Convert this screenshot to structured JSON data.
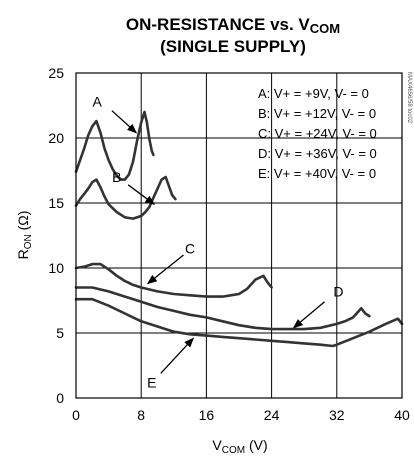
{
  "chart_data": {
    "type": "line",
    "title_line1_main": "ON-RESISTANCE vs. V",
    "title_line1_sub": "COM",
    "title_line2": "(SINGLE SUPPLY)",
    "xlabel_main": "V",
    "xlabel_sub": "COM",
    "xlabel_unit": " (V)",
    "ylabel_main": "R",
    "ylabel_sub": "ON",
    "ylabel_unit": " (Ω)",
    "xlim": [
      0,
      40
    ],
    "ylim": [
      0,
      25
    ],
    "xticks": [
      0,
      8,
      16,
      24,
      32,
      40
    ],
    "yticks": [
      0,
      5,
      10,
      15,
      20,
      25
    ],
    "grid": true,
    "legend_position": "top-right",
    "watermark": "MAX4656/58 toc02",
    "series": [
      {
        "name": "A",
        "legend": "A: V+ = +9V, V- = 0",
        "points": [
          [
            0,
            17.4
          ],
          [
            0.5,
            18.3
          ],
          [
            1,
            19.2
          ],
          [
            1.5,
            20.2
          ],
          [
            2,
            20.9
          ],
          [
            2.5,
            21.3
          ],
          [
            3,
            20.4
          ],
          [
            3.5,
            19.2
          ],
          [
            4,
            18.3
          ],
          [
            4.5,
            17.6
          ],
          [
            5,
            17.1
          ],
          [
            5.5,
            16.8
          ],
          [
            6,
            16.8
          ],
          [
            6.5,
            17.2
          ],
          [
            7,
            18.2
          ],
          [
            7.5,
            19.8
          ],
          [
            8,
            21.2
          ],
          [
            8.4,
            22.0
          ],
          [
            8.7,
            21.2
          ],
          [
            9,
            19.9
          ],
          [
            9.3,
            19.0
          ],
          [
            9.5,
            18.7
          ]
        ]
      },
      {
        "name": "B",
        "legend": "B: V+ = +12V, V- = 0",
        "points": [
          [
            0,
            14.8
          ],
          [
            0.5,
            15.3
          ],
          [
            1,
            15.7
          ],
          [
            1.5,
            16.1
          ],
          [
            2,
            16.6
          ],
          [
            2.5,
            16.8
          ],
          [
            3,
            16.2
          ],
          [
            3.5,
            15.5
          ],
          [
            4,
            14.9
          ],
          [
            5,
            14.3
          ],
          [
            6,
            13.9
          ],
          [
            7,
            13.8
          ],
          [
            8,
            14.0
          ],
          [
            8.5,
            14.3
          ],
          [
            9,
            14.7
          ],
          [
            9.5,
            15.4
          ],
          [
            10,
            16.1
          ],
          [
            10.5,
            16.8
          ],
          [
            11,
            17.0
          ],
          [
            11.4,
            16.3
          ],
          [
            11.8,
            15.6
          ],
          [
            12.2,
            15.3
          ]
        ]
      },
      {
        "name": "C",
        "legend": "C: V+ = +24V, V- = 0",
        "points": [
          [
            0,
            10.0
          ],
          [
            1,
            10.1
          ],
          [
            2,
            10.3
          ],
          [
            3,
            10.3
          ],
          [
            4,
            9.9
          ],
          [
            5,
            9.4
          ],
          [
            6,
            9.0
          ],
          [
            7,
            8.7
          ],
          [
            8,
            8.5
          ],
          [
            10,
            8.2
          ],
          [
            12,
            8.0
          ],
          [
            14,
            7.9
          ],
          [
            16,
            7.8
          ],
          [
            18,
            7.8
          ],
          [
            19,
            7.9
          ],
          [
            20,
            8.0
          ],
          [
            21,
            8.4
          ],
          [
            22,
            9.1
          ],
          [
            23,
            9.4
          ],
          [
            23.5,
            8.9
          ],
          [
            24,
            8.5
          ]
        ]
      },
      {
        "name": "D",
        "legend": "D: V+ = +36V, V- = 0",
        "points": [
          [
            0,
            8.5
          ],
          [
            2,
            8.5
          ],
          [
            4,
            8.2
          ],
          [
            6,
            7.8
          ],
          [
            8,
            7.4
          ],
          [
            10,
            7.0
          ],
          [
            12,
            6.7
          ],
          [
            14,
            6.4
          ],
          [
            16,
            6.2
          ],
          [
            18,
            5.9
          ],
          [
            20,
            5.6
          ],
          [
            22,
            5.4
          ],
          [
            24,
            5.3
          ],
          [
            26,
            5.3
          ],
          [
            28,
            5.3
          ],
          [
            30,
            5.4
          ],
          [
            32,
            5.7
          ],
          [
            33,
            5.9
          ],
          [
            34,
            6.2
          ],
          [
            35,
            6.9
          ],
          [
            35.5,
            6.5
          ],
          [
            36,
            6.3
          ]
        ]
      },
      {
        "name": "E",
        "legend": "E: V+ = +40V, V- = 0",
        "points": [
          [
            0,
            7.6
          ],
          [
            2,
            7.6
          ],
          [
            4,
            7.1
          ],
          [
            6,
            6.5
          ],
          [
            8,
            5.9
          ],
          [
            10,
            5.5
          ],
          [
            12,
            5.1
          ],
          [
            14,
            4.9
          ],
          [
            16,
            4.8
          ],
          [
            18,
            4.7
          ],
          [
            20,
            4.6
          ],
          [
            22,
            4.5
          ],
          [
            24,
            4.4
          ],
          [
            26,
            4.3
          ],
          [
            28,
            4.2
          ],
          [
            30,
            4.1
          ],
          [
            31.5,
            4.0
          ],
          [
            32,
            4.1
          ],
          [
            34,
            4.6
          ],
          [
            36,
            5.1
          ],
          [
            38,
            5.7
          ],
          [
            39.5,
            6.1
          ],
          [
            40,
            5.7
          ]
        ]
      }
    ],
    "callouts": [
      {
        "label": "A",
        "text_at": [
          2.6,
          22.8
        ],
        "arrow_from": [
          4.4,
          22.1
        ],
        "arrow_to": [
          7.4,
          20.4
        ]
      },
      {
        "label": "B",
        "text_at": [
          5.0,
          17.0
        ],
        "arrow_from": [
          6.4,
          16.4
        ],
        "arrow_to": [
          9.6,
          14.9
        ]
      },
      {
        "label": "C",
        "text_at": [
          14.0,
          11.5
        ],
        "arrow_from": [
          13.2,
          11.0
        ],
        "arrow_to": [
          8.8,
          8.8
        ]
      },
      {
        "label": "D",
        "text_at": [
          32.2,
          8.2
        ],
        "arrow_from": [
          30.5,
          7.4
        ],
        "arrow_to": [
          26.7,
          5.4
        ]
      },
      {
        "label": "E",
        "text_at": [
          9.3,
          1.2
        ],
        "arrow_from": [
          10.4,
          1.9
        ],
        "arrow_to": [
          14.4,
          4.6
        ]
      }
    ]
  }
}
